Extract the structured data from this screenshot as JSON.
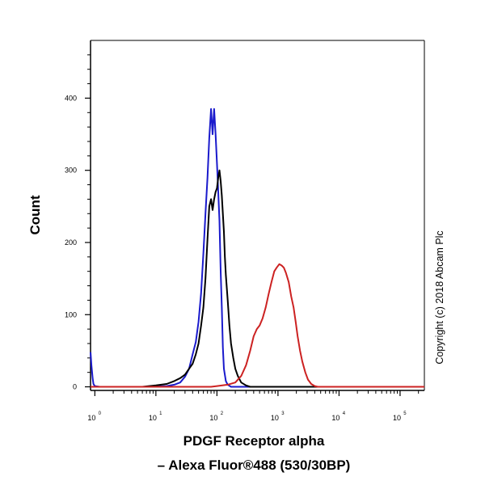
{
  "chart_data": {
    "type": "line",
    "title": "",
    "ylabel": "Count",
    "xlabel_line1": "PDGF Receptor alpha",
    "xlabel_line2": "– Alexa Fluor®488 (530/30BP)",
    "copyright": "Copyright (c) 2018 Abcam Plc",
    "xscale": "log",
    "xlim": [
      0.85,
      250000
    ],
    "ylim": [
      -5,
      480
    ],
    "y_ticks": [
      {
        "value": 0,
        "label": "0"
      },
      {
        "value": 100,
        "label": "100"
      },
      {
        "value": 200,
        "label": "200"
      },
      {
        "value": 300,
        "label": "300"
      },
      {
        "value": 400,
        "label": "400"
      }
    ],
    "x_ticks": [
      {
        "value": 1,
        "base": "10",
        "exp": "0"
      },
      {
        "value": 10,
        "base": "10",
        "exp": "1"
      },
      {
        "value": 100,
        "base": "10",
        "exp": "2"
      },
      {
        "value": 1000,
        "base": "10",
        "exp": "3"
      },
      {
        "value": 10000,
        "base": "10",
        "exp": "4"
      },
      {
        "value": 100000,
        "base": "10",
        "exp": "5"
      }
    ],
    "series": [
      {
        "name": "blue",
        "color": "#1a1acc",
        "points": [
          [
            0.85,
            48
          ],
          [
            0.88,
            30
          ],
          [
            0.92,
            12
          ],
          [
            0.95,
            4
          ],
          [
            1.0,
            1
          ],
          [
            1.2,
            0
          ],
          [
            2,
            0
          ],
          [
            4,
            0
          ],
          [
            8,
            0
          ],
          [
            15,
            1
          ],
          [
            20,
            3
          ],
          [
            25,
            6
          ],
          [
            30,
            14
          ],
          [
            35,
            25
          ],
          [
            40,
            45
          ],
          [
            45,
            62
          ],
          [
            50,
            90
          ],
          [
            55,
            130
          ],
          [
            60,
            185
          ],
          [
            65,
            240
          ],
          [
            70,
            290
          ],
          [
            75,
            345
          ],
          [
            80,
            385
          ],
          [
            85,
            350
          ],
          [
            90,
            385
          ],
          [
            95,
            350
          ],
          [
            100,
            310
          ],
          [
            105,
            270
          ],
          [
            110,
            230
          ],
          [
            115,
            160
          ],
          [
            120,
            110
          ],
          [
            125,
            55
          ],
          [
            130,
            25
          ],
          [
            140,
            8
          ],
          [
            150,
            3
          ],
          [
            170,
            0
          ],
          [
            300,
            0
          ],
          [
            250000,
            0
          ]
        ]
      },
      {
        "name": "black",
        "color": "#000000",
        "points": [
          [
            0.85,
            0
          ],
          [
            2,
            0
          ],
          [
            6,
            0
          ],
          [
            10,
            2
          ],
          [
            15,
            4
          ],
          [
            20,
            8
          ],
          [
            25,
            12
          ],
          [
            30,
            17
          ],
          [
            35,
            25
          ],
          [
            40,
            32
          ],
          [
            45,
            45
          ],
          [
            50,
            60
          ],
          [
            55,
            85
          ],
          [
            60,
            110
          ],
          [
            65,
            150
          ],
          [
            70,
            205
          ],
          [
            75,
            250
          ],
          [
            80,
            260
          ],
          [
            85,
            245
          ],
          [
            90,
            260
          ],
          [
            95,
            270
          ],
          [
            100,
            275
          ],
          [
            105,
            290
          ],
          [
            110,
            300
          ],
          [
            115,
            285
          ],
          [
            120,
            265
          ],
          [
            125,
            240
          ],
          [
            130,
            215
          ],
          [
            135,
            180
          ],
          [
            140,
            155
          ],
          [
            150,
            120
          ],
          [
            160,
            85
          ],
          [
            170,
            60
          ],
          [
            185,
            40
          ],
          [
            200,
            25
          ],
          [
            220,
            15
          ],
          [
            250,
            6
          ],
          [
            300,
            2
          ],
          [
            350,
            0
          ],
          [
            250000,
            0
          ]
        ]
      },
      {
        "name": "red",
        "color": "#cc2222",
        "points": [
          [
            0.85,
            0
          ],
          [
            40,
            0
          ],
          [
            80,
            0
          ],
          [
            100,
            1
          ],
          [
            150,
            3
          ],
          [
            200,
            6
          ],
          [
            250,
            15
          ],
          [
            300,
            30
          ],
          [
            350,
            50
          ],
          [
            400,
            70
          ],
          [
            450,
            80
          ],
          [
            500,
            85
          ],
          [
            560,
            95
          ],
          [
            630,
            110
          ],
          [
            700,
            128
          ],
          [
            780,
            145
          ],
          [
            870,
            160
          ],
          [
            950,
            165
          ],
          [
            1050,
            170
          ],
          [
            1150,
            168
          ],
          [
            1250,
            165
          ],
          [
            1350,
            158
          ],
          [
            1500,
            145
          ],
          [
            1650,
            125
          ],
          [
            1800,
            110
          ],
          [
            1950,
            90
          ],
          [
            2100,
            70
          ],
          [
            2300,
            50
          ],
          [
            2500,
            35
          ],
          [
            2800,
            20
          ],
          [
            3100,
            10
          ],
          [
            3500,
            4
          ],
          [
            4000,
            1
          ],
          [
            4500,
            0
          ],
          [
            250000,
            0
          ]
        ]
      }
    ]
  }
}
